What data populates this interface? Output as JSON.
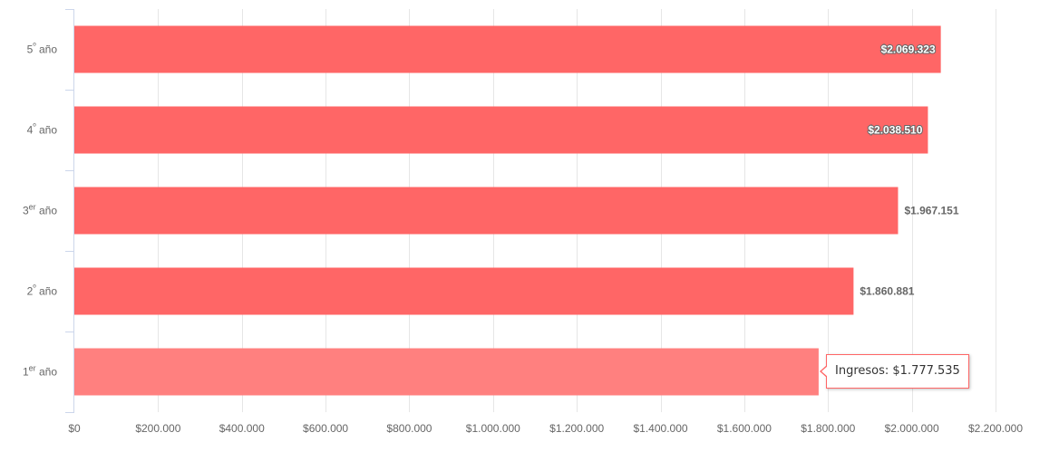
{
  "chart_data": {
    "type": "bar",
    "orientation": "horizontal",
    "categories": [
      {
        "base": "5",
        "sup": "º",
        "rest": " año"
      },
      {
        "base": "4",
        "sup": "º",
        "rest": " año"
      },
      {
        "base": "3",
        "sup": "er",
        "rest": " año"
      },
      {
        "base": "2",
        "sup": "º",
        "rest": " año"
      },
      {
        "base": "1",
        "sup": "er",
        "rest": " año"
      }
    ],
    "values": [
      2069323,
      2038510,
      1967151,
      1860881,
      1777535
    ],
    "data_labels": [
      "$2.069.323",
      "$2.038.510",
      "$1.967.151",
      "$1.860.881",
      ""
    ],
    "xlim": [
      0,
      2200000
    ],
    "x_ticks": [
      0,
      200000,
      400000,
      600000,
      800000,
      1000000,
      1200000,
      1400000,
      1600000,
      1800000,
      2000000,
      2200000
    ],
    "x_tick_labels": [
      "$0",
      "$200.000",
      "$400.000",
      "$600.000",
      "$800.000",
      "$1.000.000",
      "$1.200.000",
      "$1.400.000",
      "$1.600.000",
      "$1.800.000",
      "$2.000.000",
      "$2.200.000"
    ],
    "grid": true,
    "colors": {
      "bar": "#ff6666",
      "bar_hover": "#ff807f",
      "grid": "#e6e6e6",
      "axis": "#ccd6eb"
    }
  },
  "tooltip": {
    "text": "Ingresos: $1.777.535",
    "category_index": 4
  }
}
